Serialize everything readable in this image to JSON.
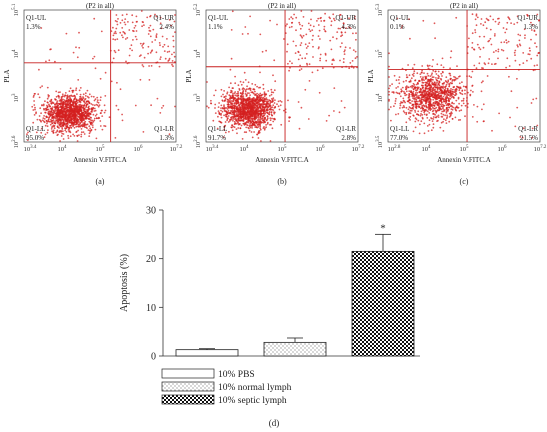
{
  "flow_panels": [
    {
      "caption": "(a)",
      "title": "(P2 in all)",
      "ylabel": "PLA",
      "xlabel": "Annexin V.FITC.A",
      "x_ticks": [
        "10^{3.4}",
        "10^{4}",
        "10^{5}",
        "10^{6}",
        "10^{7.2}"
      ],
      "y_ticks": [
        "10^{2.6}",
        "10^{3}",
        "10^{4}",
        "10^{5.1}"
      ],
      "quadrants": {
        "ul": {
          "label": "Q1-UL",
          "pct": "1.3%"
        },
        "ur": {
          "label": "Q1-UR",
          "pct": "2.4%"
        },
        "ll": {
          "label": "Q1-LL",
          "pct": "95.0%"
        },
        "lr": {
          "label": "Q1-LR",
          "pct": "1.3%"
        }
      }
    },
    {
      "caption": "(b)",
      "title": "(P2 in all)",
      "ylabel": "PLA",
      "xlabel": "Annexin V.FITC.A",
      "x_ticks": [
        "10^{3.4}",
        "10^{4}",
        "10^{5}",
        "10^{6}",
        "10^{7.2}"
      ],
      "y_ticks": [
        "10^{2.6}",
        "10^{3}",
        "10^{4}",
        "10^{5.2}"
      ],
      "quadrants": {
        "ul": {
          "label": "Q1-UL",
          "pct": "1.1%"
        },
        "ur": {
          "label": "Q1-UR",
          "pct": "4.3%"
        },
        "ll": {
          "label": "Q1-LL",
          "pct": "91.7%"
        },
        "lr": {
          "label": "Q1-LR",
          "pct": "2.8%"
        }
      }
    },
    {
      "caption": "(c)",
      "title": "(P2 in all)",
      "ylabel": "PLA",
      "xlabel": "Annexin V.FITC.A",
      "x_ticks": [
        "10^{2.8}",
        "10^{4}",
        "10^{5}",
        "10^{6}",
        "10^{7.2}"
      ],
      "y_ticks": [
        "10^{3.5}",
        "10^{4}",
        "10^{5}",
        "10^{5.3}"
      ],
      "quadrants": {
        "ul": {
          "label": "Q1-UL",
          "pct": "0.1%"
        },
        "ur": {
          "label": "Q1-UR",
          "pct": "1.3%"
        },
        "ll": {
          "label": "Q1-LL",
          "pct": "77.0%"
        },
        "lr": {
          "label": "Q1-LR",
          "pct": "21.5%"
        }
      }
    }
  ],
  "chart_data": {
    "type": "bar",
    "caption": "(d)",
    "ylabel": "Apoptosis (%)",
    "ylim": [
      0,
      30
    ],
    "yticks": [
      0,
      10,
      20,
      30
    ],
    "categories": [
      "10% PBS",
      "10% normal lymph",
      "10% septic lymph"
    ],
    "values": [
      1.3,
      2.8,
      21.5
    ],
    "errors": [
      0.2,
      0.9,
      3.5
    ],
    "fills": [
      "plain",
      "dots",
      "checker"
    ],
    "annotations": [
      "",
      "",
      "*"
    ],
    "legend": [
      "10% PBS",
      "10% normal lymph",
      "10% septic lymph"
    ],
    "colors": {
      "dots": "#d42020",
      "axes": "#333333"
    }
  }
}
